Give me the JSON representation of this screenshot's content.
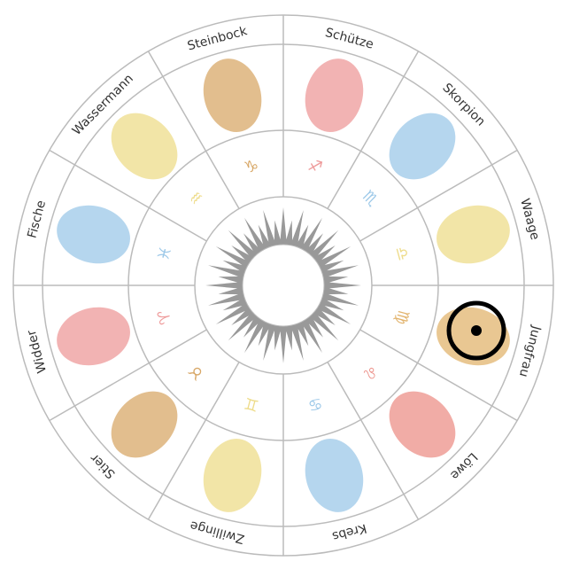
{
  "signs": [
    {
      "label": "Schütze",
      "symbol": "♐",
      "color": "#ee9a9a"
    },
    {
      "label": "Skorpion",
      "symbol": "♏",
      "color": "#9cc8e8"
    },
    {
      "label": "Waage",
      "symbol": "♎",
      "color": "#eedc8a"
    },
    {
      "label": "Jungfrau",
      "symbol": "♍",
      "color": "#e2b46e"
    },
    {
      "label": "Löwe",
      "symbol": "♌",
      "color": "#ec9088"
    },
    {
      "label": "Krebs",
      "symbol": "♋",
      "color": "#9cc8e8"
    },
    {
      "label": "Zwillinge",
      "symbol": "♊",
      "color": "#eedc8a"
    },
    {
      "label": "Stier",
      "symbol": "♉",
      "color": "#d8a868"
    },
    {
      "label": "Widder",
      "symbol": "♈",
      "color": "#ee9a9a"
    },
    {
      "label": "Fische",
      "symbol": "♓",
      "color": "#9cc8e8"
    },
    {
      "label": "Wassermann",
      "symbol": "♒",
      "color": "#eedc8a"
    },
    {
      "label": "Steinbock",
      "symbol": "♑",
      "color": "#d8a868"
    }
  ]
}
